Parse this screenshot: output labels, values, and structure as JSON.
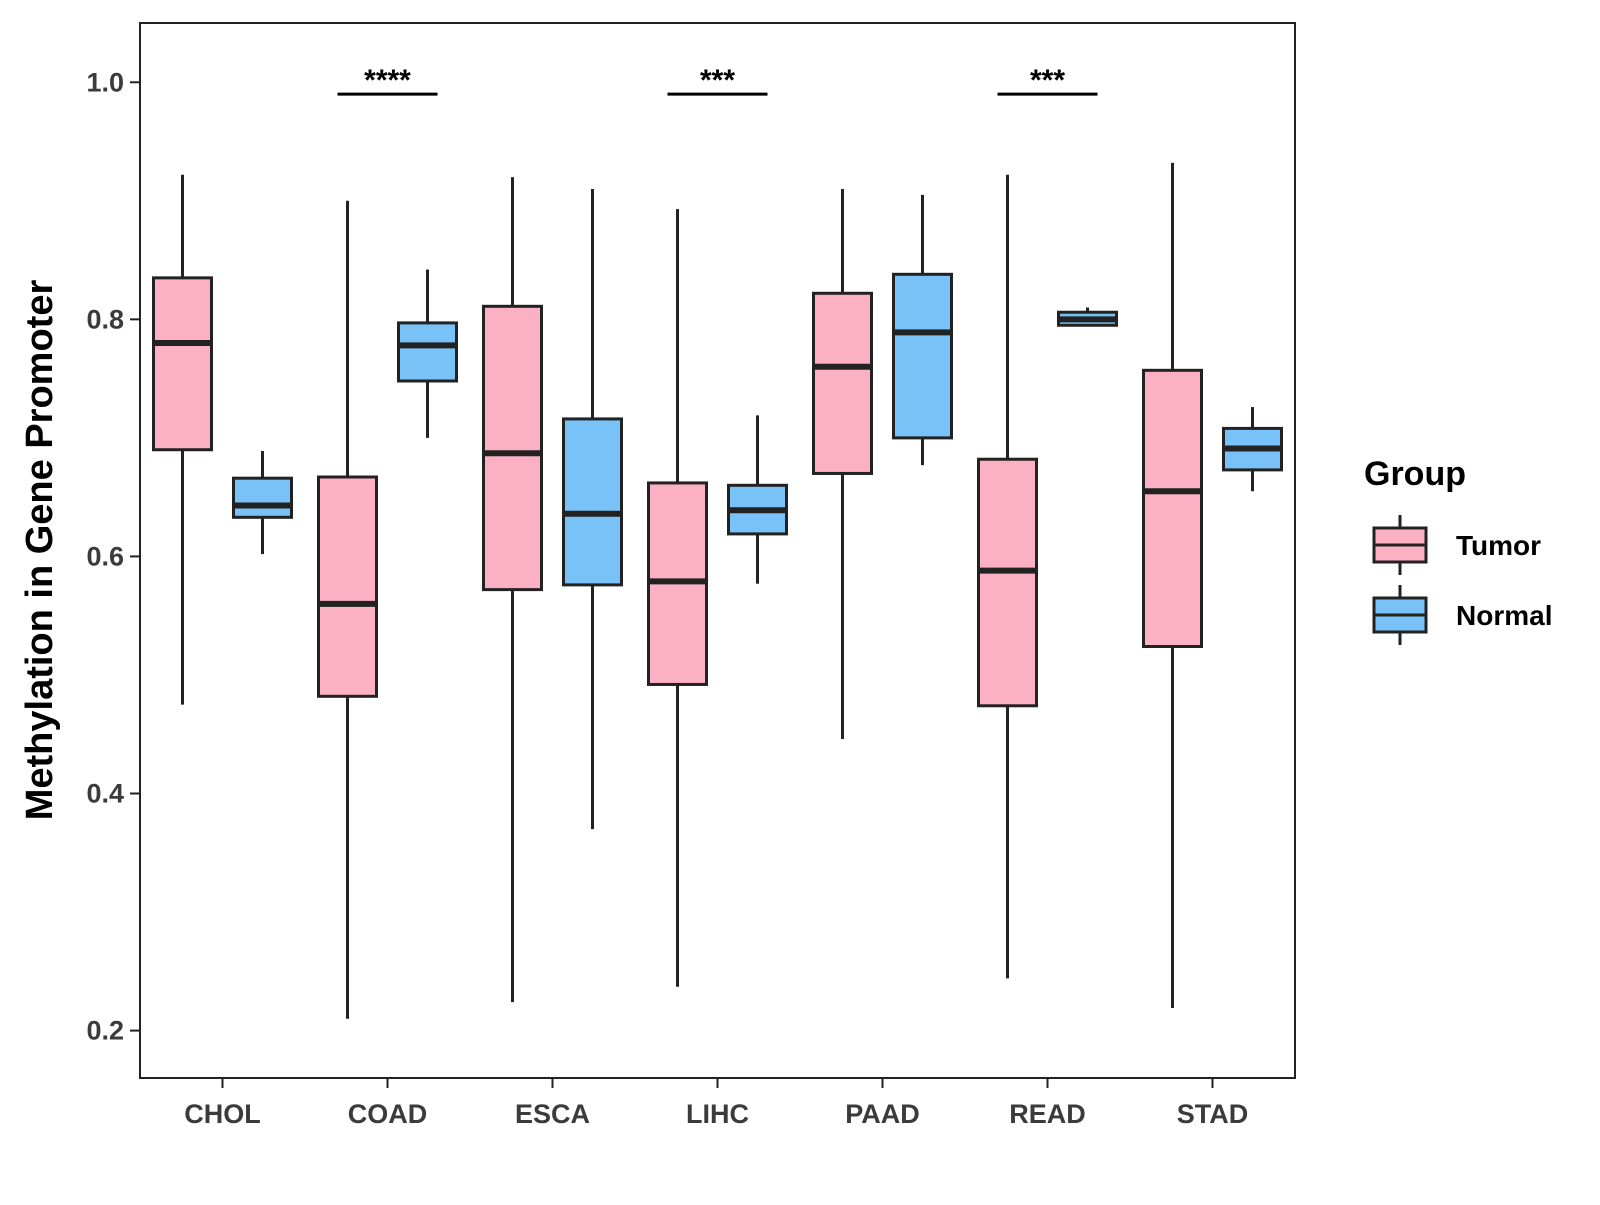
{
  "chart_data": {
    "type": "boxplot",
    "title": "",
    "xlabel": "",
    "ylabel": "Methylation in Gene Promoter",
    "ylim": [
      0.16,
      1.05
    ],
    "yticks": [
      0.2,
      0.4,
      0.6,
      0.8,
      1.0
    ],
    "ytick_labels": [
      "0.2",
      "0.4",
      "0.6",
      "0.8",
      "1.0"
    ],
    "grid": false,
    "categories": [
      "CHOL",
      "COAD",
      "ESCA",
      "LIHC",
      "PAAD",
      "READ",
      "STAD"
    ],
    "legend": {
      "title": "Group",
      "position": "right",
      "entries": [
        {
          "name": "Tumor",
          "color": "#FBB0C3"
        },
        {
          "name": "Normal",
          "color": "#79C2F7"
        }
      ]
    },
    "series": [
      {
        "name": "Tumor",
        "color": "#FBB0C3",
        "boxes": [
          {
            "min": 0.475,
            "q1": 0.69,
            "median": 0.78,
            "q3": 0.835,
            "max": 0.922
          },
          {
            "min": 0.21,
            "q1": 0.482,
            "median": 0.56,
            "q3": 0.667,
            "max": 0.9
          },
          {
            "min": 0.224,
            "q1": 0.572,
            "median": 0.687,
            "q3": 0.811,
            "max": 0.92
          },
          {
            "min": 0.237,
            "q1": 0.492,
            "median": 0.579,
            "q3": 0.662,
            "max": 0.893
          },
          {
            "min": 0.446,
            "q1": 0.67,
            "median": 0.76,
            "q3": 0.822,
            "max": 0.91
          },
          {
            "min": 0.244,
            "q1": 0.474,
            "median": 0.588,
            "q3": 0.682,
            "max": 0.922
          },
          {
            "min": 0.219,
            "q1": 0.524,
            "median": 0.655,
            "q3": 0.757,
            "max": 0.932
          }
        ]
      },
      {
        "name": "Normal",
        "color": "#79C2F7",
        "boxes": [
          {
            "min": 0.602,
            "q1": 0.633,
            "median": 0.643,
            "q3": 0.666,
            "max": 0.689
          },
          {
            "min": 0.7,
            "q1": 0.748,
            "median": 0.778,
            "q3": 0.797,
            "max": 0.842
          },
          {
            "min": 0.37,
            "q1": 0.576,
            "median": 0.636,
            "q3": 0.716,
            "max": 0.91
          },
          {
            "min": 0.577,
            "q1": 0.619,
            "median": 0.639,
            "q3": 0.66,
            "max": 0.719
          },
          {
            "min": 0.677,
            "q1": 0.7,
            "median": 0.789,
            "q3": 0.838,
            "max": 0.905
          },
          {
            "min": 0.794,
            "q1": 0.795,
            "median": 0.8,
            "q3": 0.806,
            "max": 0.81
          },
          {
            "min": 0.655,
            "q1": 0.673,
            "median": 0.691,
            "q3": 0.708,
            "max": 0.726
          }
        ]
      }
    ],
    "annotations": [
      {
        "category": "COAD",
        "label": "****",
        "y": 0.99
      },
      {
        "category": "LIHC",
        "label": "***",
        "y": 0.99
      },
      {
        "category": "READ",
        "label": "***",
        "y": 0.99
      }
    ]
  }
}
